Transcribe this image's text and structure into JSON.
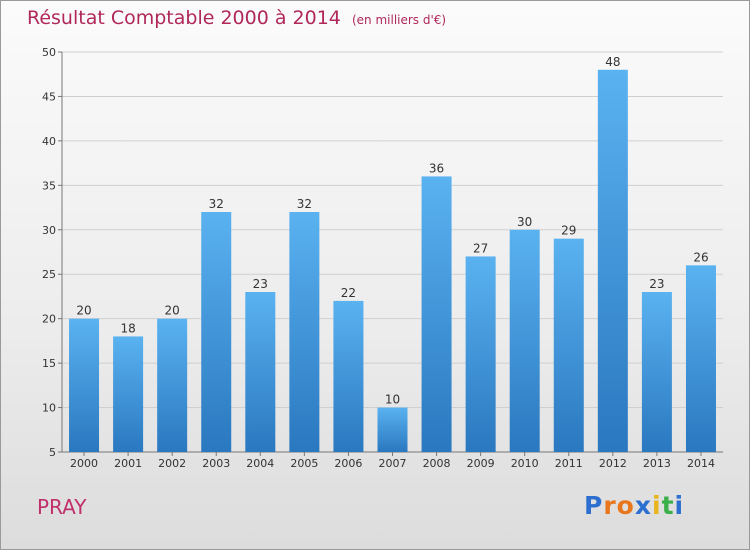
{
  "chart_data": {
    "type": "bar",
    "title": "Résultat Comptable 2000 à 2014",
    "subtitle": "(en milliers d'€)",
    "categories": [
      "2000",
      "2001",
      "2002",
      "2003",
      "2004",
      "2005",
      "2006",
      "2007",
      "2008",
      "2009",
      "2010",
      "2011",
      "2012",
      "2013",
      "2014"
    ],
    "values": [
      20,
      18,
      20,
      32,
      23,
      32,
      22,
      10,
      36,
      27,
      30,
      29,
      48,
      23,
      26
    ],
    "ylim": [
      5,
      50
    ],
    "yticks": [
      5,
      10,
      15,
      20,
      25,
      30,
      35,
      40,
      45,
      50
    ],
    "xlabel": "",
    "ylabel": "",
    "grid": true,
    "bar_color": "#4aa3e6"
  },
  "footer": {
    "commune": "PRAY",
    "brand_letters": [
      "P",
      "r",
      "o",
      "x",
      "i",
      "t",
      "i"
    ],
    "brand_colors": [
      "#2d6fd0",
      "#e8761c",
      "#e8761c",
      "#2d6fd0",
      "#e8b51c",
      "#3bb04a",
      "#2d6fd0"
    ]
  }
}
